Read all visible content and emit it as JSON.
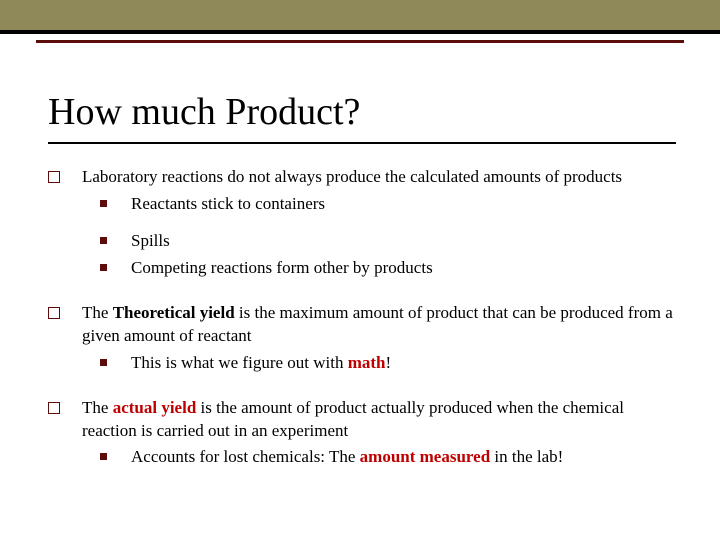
{
  "styling": {
    "top_band_color": "#8f895a",
    "top_band_border": "#000000",
    "decorative_line_color": "#5d0c0c",
    "title_fontsize": 38,
    "body_fontsize": 17,
    "bullet_border_color": "#5d0c0c",
    "bullet_fill_color": "#5d0c0c",
    "highlight_red": "#bf0000",
    "text_color": "#000000",
    "background": "#ffffff"
  },
  "title": "How much Product?",
  "items": [
    {
      "text": "Laboratory reactions do not always produce the calculated amounts of products",
      "sub": [
        "Reactants stick to containers",
        "Spills",
        "Competing reactions form other by products"
      ]
    },
    {
      "prefix": "The ",
      "bold1": "Theoretical yield ",
      "rest": "is the maximum amount of product that can be produced from a given amount of reactant",
      "sub_prefix": "This is what we figure out with ",
      "sub_red": "math",
      "sub_suffix": "!"
    },
    {
      "prefix": "The ",
      "red1": "actual yield ",
      "rest": "is the amount of product actually produced when the chemical reaction is carried out in an experiment",
      "sub_prefix": "Accounts for lost chemicals: The ",
      "sub_red": "amount measured",
      "sub_suffix": " in the lab!"
    }
  ]
}
